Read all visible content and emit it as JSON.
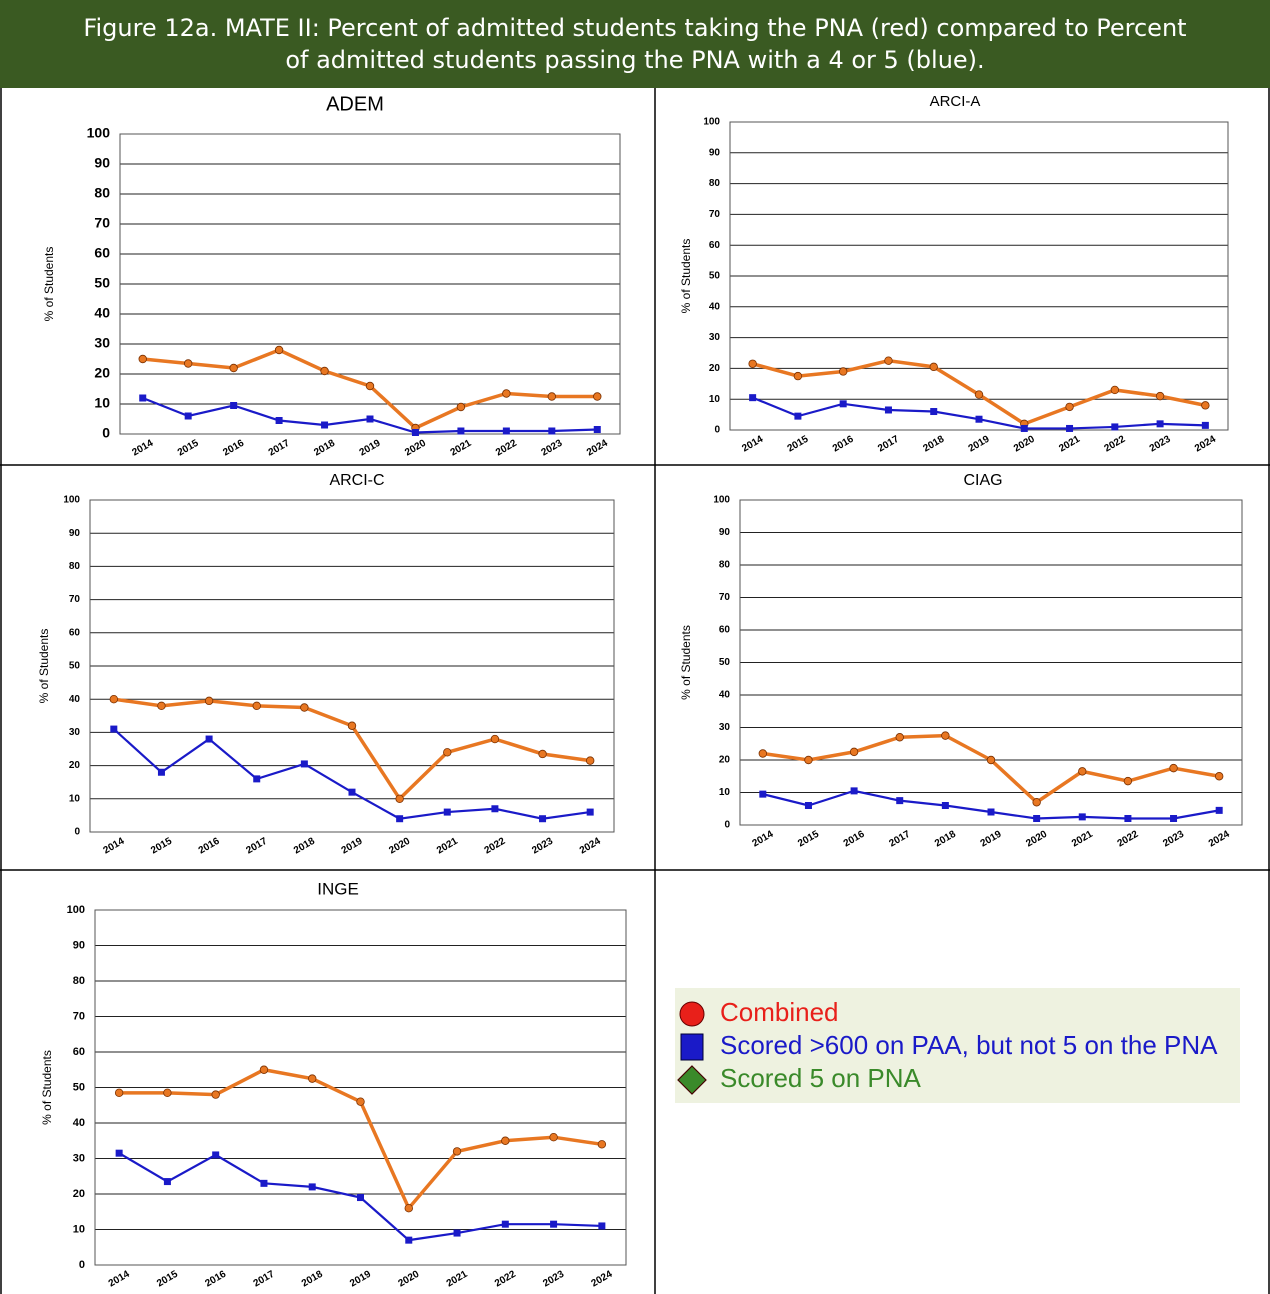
{
  "title": "Figure 12a. MATE II: Percent of admitted students taking the PNA (red) compared to Percent of admitted students passing the PNA with a 4 or 5 (blue).",
  "chart_data": [
    {
      "type": "line",
      "title": "ADEM",
      "y_label": "% of Students",
      "categories": [
        "2014",
        "2015",
        "2016",
        "2017",
        "2018",
        "2019",
        "2020",
        "2021",
        "2022",
        "2023",
        "2024"
      ],
      "series": [
        {
          "color": "#e87722",
          "marker": "circle",
          "values": [
            25,
            23.5,
            22,
            28,
            21,
            16,
            2,
            9,
            13.5,
            12.5,
            12.5
          ]
        },
        {
          "color": "#1a1ac8",
          "marker": "square",
          "values": [
            12,
            6,
            9.5,
            4.5,
            3,
            5,
            0.5,
            1,
            1,
            1,
            1.5
          ]
        }
      ],
      "ylim": [
        0,
        100
      ],
      "yticks": [
        0,
        10,
        20,
        30,
        40,
        50,
        60,
        70,
        80,
        90,
        100
      ],
      "grid": true
    },
    {
      "type": "line",
      "title": "ARCI-A",
      "y_label": "% of Students",
      "categories": [
        "2014",
        "2015",
        "2016",
        "2017",
        "2018",
        "2019",
        "2020",
        "2021",
        "2022",
        "2023",
        "2024"
      ],
      "series": [
        {
          "color": "#e87722",
          "marker": "circle",
          "values": [
            21.5,
            17.5,
            19,
            22.5,
            20.5,
            11.5,
            2,
            7.5,
            13,
            11,
            8
          ]
        },
        {
          "color": "#1a1ac8",
          "marker": "square",
          "values": [
            10.5,
            4.5,
            8.5,
            6.5,
            6,
            3.5,
            0.5,
            0.5,
            1,
            2,
            1.5
          ]
        }
      ],
      "ylim": [
        0,
        100
      ],
      "yticks": [
        0,
        10,
        20,
        30,
        40,
        50,
        60,
        70,
        80,
        90,
        100
      ],
      "grid": true
    },
    {
      "type": "line",
      "title": "ARCI-C",
      "y_label": "% of Students",
      "categories": [
        "2014",
        "2015",
        "2016",
        "2017",
        "2018",
        "2019",
        "2020",
        "2021",
        "2022",
        "2023",
        "2024"
      ],
      "series": [
        {
          "color": "#e87722",
          "marker": "circle",
          "values": [
            40,
            38,
            39.5,
            38,
            37.5,
            32,
            10,
            24,
            28,
            23.5,
            21.5
          ]
        },
        {
          "color": "#1a1ac8",
          "marker": "square",
          "values": [
            31,
            18,
            28,
            16,
            20.5,
            12,
            4,
            6,
            7,
            4,
            6
          ]
        }
      ],
      "ylim": [
        0,
        100
      ],
      "yticks": [
        0,
        10,
        20,
        30,
        40,
        50,
        60,
        70,
        80,
        90,
        100
      ],
      "grid": true
    },
    {
      "type": "line",
      "title": "CIAG",
      "y_label": "% of Students",
      "categories": [
        "2014",
        "2015",
        "2016",
        "2017",
        "2018",
        "2019",
        "2020",
        "2021",
        "2022",
        "2023",
        "2024"
      ],
      "series": [
        {
          "color": "#e87722",
          "marker": "circle",
          "values": [
            22,
            20,
            22.5,
            27,
            27.5,
            20,
            7,
            16.5,
            13.5,
            17.5,
            15
          ]
        },
        {
          "color": "#1a1ac8",
          "marker": "square",
          "values": [
            9.5,
            6,
            10.5,
            7.5,
            6,
            4,
            2,
            2.5,
            2,
            2,
            4.5
          ]
        }
      ],
      "ylim": [
        0,
        100
      ],
      "yticks": [
        0,
        10,
        20,
        30,
        40,
        50,
        60,
        70,
        80,
        90,
        100
      ],
      "grid": true
    },
    {
      "type": "line",
      "title": "INGE",
      "y_label": "% of Students",
      "categories": [
        "2014",
        "2015",
        "2016",
        "2017",
        "2018",
        "2019",
        "2020",
        "2021",
        "2022",
        "2023",
        "2024"
      ],
      "series": [
        {
          "color": "#e87722",
          "marker": "circle",
          "values": [
            48.5,
            48.5,
            48,
            55,
            52.5,
            46,
            16,
            32,
            35,
            36,
            34
          ]
        },
        {
          "color": "#1a1ac8",
          "marker": "square",
          "values": [
            31.5,
            23.5,
            31,
            23,
            22,
            19,
            7,
            9,
            11.5,
            11.5,
            11
          ]
        }
      ],
      "ylim": [
        0,
        100
      ],
      "yticks": [
        0,
        10,
        20,
        30,
        40,
        50,
        60,
        70,
        80,
        90,
        100
      ],
      "grid": true
    }
  ],
  "legend": {
    "entries": [
      {
        "label": "Combined",
        "color": "#e8201a",
        "marker": "circle"
      },
      {
        "label": "Scored >600 on PAA, but not 5 on the PNA",
        "color": "#1a1ac8",
        "marker": "square"
      },
      {
        "label": "Scored 5 on PNA",
        "color": "#3a8a2a",
        "marker": "diamond"
      }
    ]
  }
}
